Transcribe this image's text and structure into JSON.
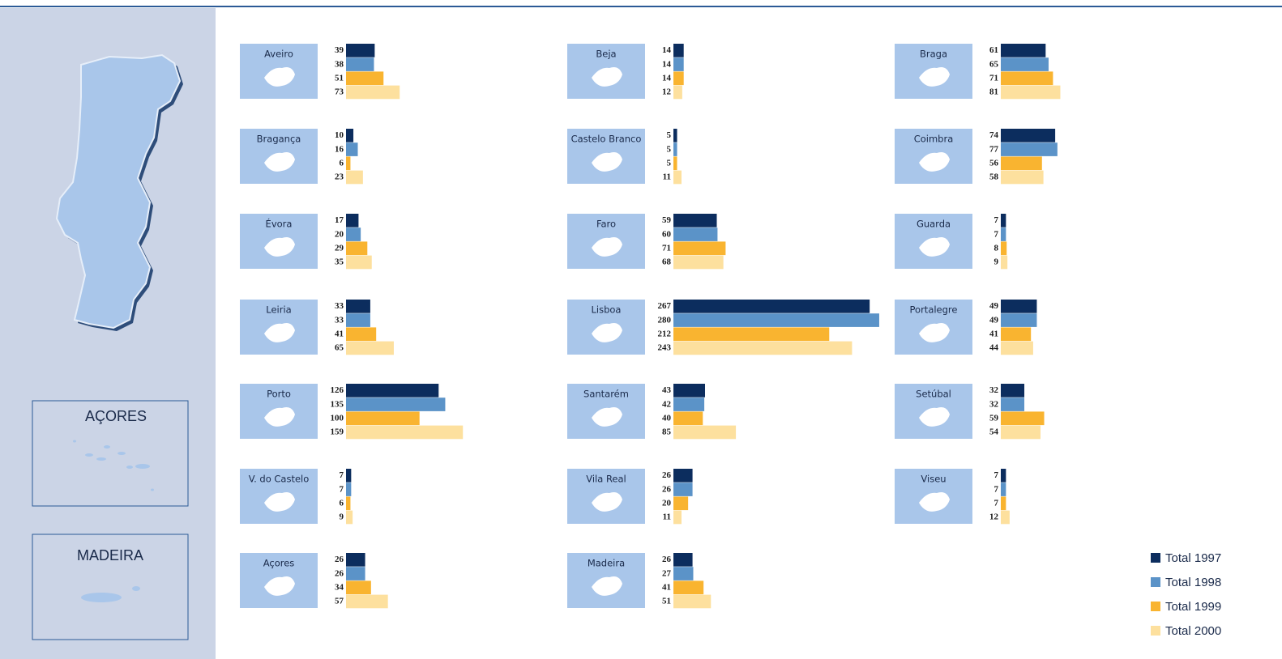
{
  "chart_data": {
    "type": "bar",
    "categories": [
      "Aveiro",
      "Beja",
      "Braga",
      "Bragança",
      "Castelo Branco",
      "Coimbra",
      "Évora",
      "Faro",
      "Guarda",
      "Leiria",
      "Lisboa",
      "Portalegre",
      "Porto",
      "Santarém",
      "Setúbal",
      "V. do Castelo",
      "Vila Real",
      "Viseu",
      "Açores",
      "Madeira"
    ],
    "series": [
      {
        "name": "Total 1997",
        "color": "#0c2d5e",
        "values": [
          39,
          14,
          61,
          10,
          5,
          74,
          17,
          59,
          7,
          33,
          267,
          49,
          126,
          43,
          32,
          7,
          26,
          7,
          26,
          26
        ]
      },
      {
        "name": "Total 1998",
        "color": "#5b93c8",
        "values": [
          38,
          14,
          65,
          16,
          5,
          77,
          20,
          60,
          7,
          33,
          280,
          49,
          135,
          42,
          32,
          7,
          26,
          7,
          26,
          27
        ]
      },
      {
        "name": "Total 1999",
        "color": "#f9b430",
        "values": [
          51,
          14,
          71,
          6,
          5,
          56,
          29,
          71,
          8,
          41,
          212,
          41,
          100,
          40,
          59,
          6,
          20,
          7,
          34,
          41
        ]
      },
      {
        "name": "Total 2000",
        "color": "#fde09e",
        "values": [
          73,
          12,
          81,
          23,
          11,
          58,
          35,
          68,
          9,
          65,
          243,
          44,
          159,
          85,
          54,
          9,
          11,
          12,
          57,
          51
        ]
      }
    ],
    "map_labels": [
      "AÇORES",
      "MADEIRA"
    ]
  }
}
